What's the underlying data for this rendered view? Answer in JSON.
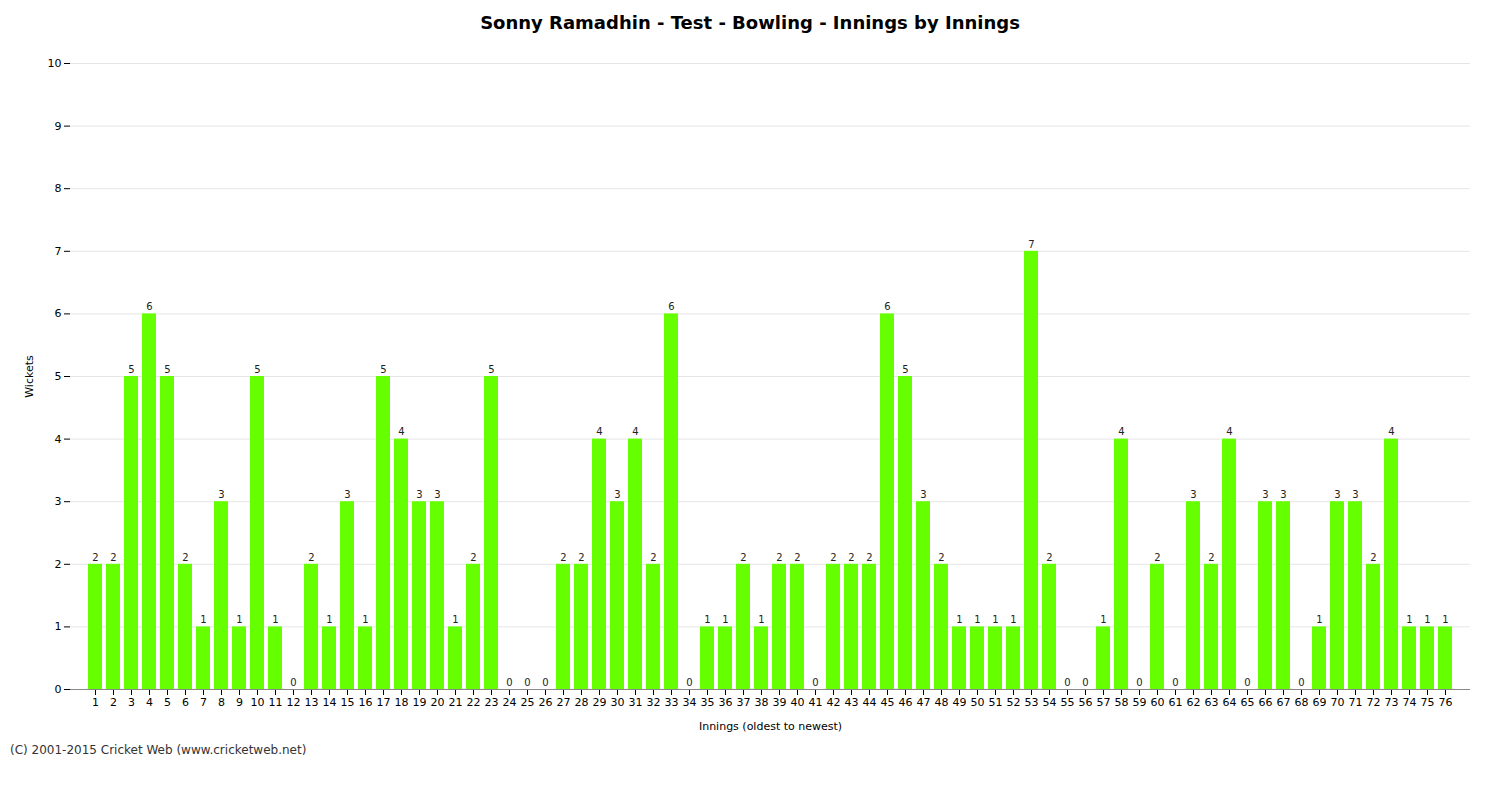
{
  "chart_data": {
    "type": "bar",
    "title": "Sonny Ramadhin - Test - Bowling - Innings by Innings",
    "xlabel": "Innings (oldest to newest)",
    "ylabel": "Wickets",
    "annotations": [
      "(C) 2001-2015 Cricket Web (www.cricketweb.net)"
    ],
    "color": "#66ff00",
    "ylim": [
      0,
      10
    ],
    "yticks": [
      0,
      1,
      2,
      3,
      4,
      5,
      6,
      7,
      8,
      9,
      10
    ],
    "grid": true,
    "data_labels": true,
    "categories": [
      "1",
      "2",
      "3",
      "4",
      "5",
      "6",
      "7",
      "8",
      "9",
      "10",
      "11",
      "12",
      "13",
      "14",
      "15",
      "16",
      "17",
      "18",
      "19",
      "20",
      "21",
      "22",
      "23",
      "24",
      "25",
      "26",
      "27",
      "28",
      "29",
      "30",
      "31",
      "32",
      "33",
      "34",
      "35",
      "36",
      "37",
      "38",
      "39",
      "40",
      "41",
      "42",
      "43",
      "44",
      "45",
      "46",
      "47",
      "48",
      "49",
      "50",
      "51",
      "52",
      "53",
      "54",
      "55",
      "56",
      "57",
      "58",
      "59",
      "60",
      "61",
      "62",
      "63",
      "64",
      "65",
      "66",
      "67",
      "68",
      "69",
      "70",
      "71",
      "72",
      "73",
      "74",
      "75",
      "76"
    ],
    "values": [
      2,
      2,
      5,
      6,
      5,
      2,
      1,
      3,
      1,
      5,
      1,
      0,
      2,
      1,
      3,
      1,
      5,
      4,
      3,
      3,
      1,
      2,
      5,
      0,
      0,
      0,
      2,
      2,
      4,
      3,
      4,
      2,
      6,
      0,
      1,
      1,
      2,
      1,
      2,
      2,
      0,
      2,
      2,
      2,
      6,
      5,
      3,
      2,
      1,
      1,
      1,
      1,
      7,
      2,
      0,
      0,
      1,
      4,
      0,
      2,
      0,
      3,
      2,
      4,
      0,
      3,
      3,
      0,
      1,
      3,
      3,
      2,
      4,
      1,
      1,
      1
    ]
  }
}
